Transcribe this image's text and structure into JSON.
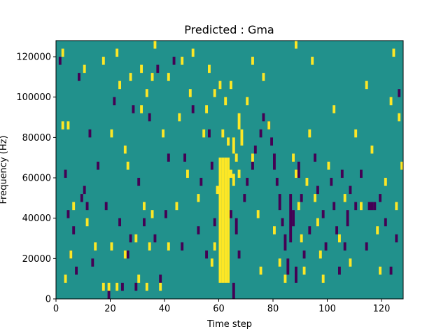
{
  "chart_data": {
    "type": "heatmap",
    "title": "Predicted : Gma",
    "xlabel": "Time step",
    "ylabel": "Frequency (Hz)",
    "xlim": [
      0,
      128
    ],
    "ylim": [
      0,
      128000
    ],
    "x_ticks": [
      0,
      20,
      40,
      60,
      80,
      100,
      120
    ],
    "y_ticks": [
      0,
      20000,
      40000,
      60000,
      80000,
      100000,
      120000
    ],
    "x_tick_labels": [
      "0",
      "20",
      "40",
      "60",
      "80",
      "100",
      "120"
    ],
    "y_tick_labels": [
      "0",
      "20000",
      "40000",
      "60000",
      "80000",
      "100000",
      "120000"
    ],
    "colors": {
      "background": "#21918c",
      "high": "#fde725",
      "low": "#440154"
    },
    "bin_height": 4000,
    "high_cells": [
      [
        60,
        8000,
        70000
      ],
      [
        61,
        8000,
        70000
      ],
      [
        62,
        8000,
        70000
      ],
      [
        63,
        8000,
        70000
      ],
      [
        59,
        52000,
        56000
      ],
      [
        64,
        60000,
        64000
      ],
      [
        65,
        56000,
        62000
      ],
      [
        58,
        24000,
        28000
      ],
      [
        57,
        16000,
        20000
      ],
      [
        65,
        72000,
        80000
      ],
      [
        66,
        68000,
        72000
      ],
      [
        67,
        60000,
        64000
      ],
      [
        67,
        84000,
        92000
      ],
      [
        68,
        76000,
        84000
      ],
      [
        63,
        76000,
        80000
      ],
      [
        61,
        80000,
        84000
      ],
      [
        62,
        96000,
        100000
      ],
      [
        64,
        104000,
        108000
      ],
      [
        2,
        84000,
        88000
      ],
      [
        4,
        84000,
        88000
      ],
      [
        5,
        20000,
        24000
      ],
      [
        6,
        44000,
        48000
      ],
      [
        3,
        8000,
        12000
      ],
      [
        11,
        36000,
        40000
      ],
      [
        14,
        24000,
        28000
      ],
      [
        17,
        4000,
        8000
      ],
      [
        19,
        4000,
        8000
      ],
      [
        20,
        24000,
        28000
      ],
      [
        22,
        4000,
        8000
      ],
      [
        25,
        20000,
        24000
      ],
      [
        29,
        28000,
        32000
      ],
      [
        30,
        8000,
        12000
      ],
      [
        32,
        44000,
        48000
      ],
      [
        33,
        4000,
        8000
      ],
      [
        34,
        24000,
        28000
      ],
      [
        35,
        40000,
        44000
      ],
      [
        38,
        4000,
        8000
      ],
      [
        41,
        24000,
        28000
      ],
      [
        44,
        44000,
        48000
      ],
      [
        48,
        60000,
        64000
      ],
      [
        52,
        48000,
        52000
      ],
      [
        54,
        80000,
        84000
      ],
      [
        20,
        80000,
        84000
      ],
      [
        23,
        104000,
        108000
      ],
      [
        25,
        72000,
        76000
      ],
      [
        26,
        64000,
        68000
      ],
      [
        31,
        92000,
        96000
      ],
      [
        33,
        100000,
        104000
      ],
      [
        35,
        108000,
        112000
      ],
      [
        39,
        80000,
        84000
      ],
      [
        45,
        88000,
        92000
      ],
      [
        49,
        100000,
        104000
      ],
      [
        55,
        92000,
        96000
      ],
      [
        58,
        100000,
        104000
      ],
      [
        2,
        120000,
        124000
      ],
      [
        10,
        112000,
        116000
      ],
      [
        17,
        116000,
        120000
      ],
      [
        22,
        120000,
        124000
      ],
      [
        27,
        108000,
        112000
      ],
      [
        31,
        112000,
        116000
      ],
      [
        36,
        124000,
        128000
      ],
      [
        41,
        108000,
        112000
      ],
      [
        46,
        116000,
        120000
      ],
      [
        50,
        120000,
        124000
      ],
      [
        56,
        112000,
        116000
      ],
      [
        60,
        104000,
        108000
      ],
      [
        70,
        96000,
        100000
      ],
      [
        72,
        68000,
        72000
      ],
      [
        74,
        40000,
        44000
      ],
      [
        75,
        12000,
        16000
      ],
      [
        78,
        84000,
        88000
      ],
      [
        80,
        32000,
        36000
      ],
      [
        82,
        16000,
        20000
      ],
      [
        84,
        8000,
        12000
      ],
      [
        87,
        68000,
        72000
      ],
      [
        88,
        60000,
        64000
      ],
      [
        89,
        44000,
        48000
      ],
      [
        90,
        28000,
        32000
      ],
      [
        91,
        12000,
        16000
      ],
      [
        92,
        56000,
        60000
      ],
      [
        93,
        80000,
        84000
      ],
      [
        95,
        48000,
        52000
      ],
      [
        96,
        36000,
        40000
      ],
      [
        97,
        20000,
        24000
      ],
      [
        98,
        8000,
        12000
      ],
      [
        100,
        64000,
        68000
      ],
      [
        102,
        92000,
        96000
      ],
      [
        104,
        28000,
        32000
      ],
      [
        106,
        48000,
        52000
      ],
      [
        108,
        16000,
        20000
      ],
      [
        110,
        80000,
        84000
      ],
      [
        112,
        44000,
        48000
      ],
      [
        114,
        104000,
        108000
      ],
      [
        116,
        72000,
        76000
      ],
      [
        118,
        32000,
        36000
      ],
      [
        119,
        12000,
        16000
      ],
      [
        121,
        56000,
        60000
      ],
      [
        123,
        96000,
        100000
      ],
      [
        125,
        44000,
        48000
      ],
      [
        126,
        88000,
        92000
      ],
      [
        127,
        64000,
        68000
      ],
      [
        124,
        120000,
        124000
      ],
      [
        88,
        124000,
        128000
      ],
      [
        94,
        116000,
        120000
      ],
      [
        76,
        108000,
        112000
      ],
      [
        72,
        116000,
        120000
      ]
    ],
    "low_cells": [
      [
        65,
        0,
        8000
      ],
      [
        67,
        20000,
        24000
      ],
      [
        66,
        32000,
        40000
      ],
      [
        64,
        40000,
        44000
      ],
      [
        69,
        48000,
        52000
      ],
      [
        70,
        56000,
        60000
      ],
      [
        72,
        64000,
        68000
      ],
      [
        73,
        72000,
        76000
      ],
      [
        75,
        80000,
        84000
      ],
      [
        76,
        88000,
        92000
      ],
      [
        78,
        84000,
        88000
      ],
      [
        79,
        76000,
        80000
      ],
      [
        80,
        64000,
        72000
      ],
      [
        81,
        56000,
        60000
      ],
      [
        82,
        44000,
        52000
      ],
      [
        83,
        36000,
        40000
      ],
      [
        84,
        24000,
        32000
      ],
      [
        85,
        12000,
        20000
      ],
      [
        86,
        28000,
        52000
      ],
      [
        87,
        36000,
        44000
      ],
      [
        88,
        8000,
        16000
      ],
      [
        89,
        60000,
        68000
      ],
      [
        90,
        48000,
        52000
      ],
      [
        91,
        20000,
        24000
      ],
      [
        93,
        32000,
        36000
      ],
      [
        95,
        68000,
        72000
      ],
      [
        96,
        52000,
        56000
      ],
      [
        98,
        40000,
        44000
      ],
      [
        99,
        24000,
        28000
      ],
      [
        101,
        56000,
        60000
      ],
      [
        102,
        44000,
        48000
      ],
      [
        103,
        32000,
        36000
      ],
      [
        104,
        12000,
        16000
      ],
      [
        105,
        60000,
        64000
      ],
      [
        106,
        24000,
        28000
      ],
      [
        107,
        36000,
        44000
      ],
      [
        108,
        52000,
        56000
      ],
      [
        110,
        44000,
        48000
      ],
      [
        112,
        60000,
        64000
      ],
      [
        114,
        24000,
        28000
      ],
      [
        115,
        44000,
        48000
      ],
      [
        116,
        44000,
        48000
      ],
      [
        117,
        44000,
        48000
      ],
      [
        119,
        48000,
        52000
      ],
      [
        121,
        36000,
        40000
      ],
      [
        123,
        12000,
        16000
      ],
      [
        125,
        28000,
        32000
      ],
      [
        126,
        100000,
        104000
      ],
      [
        1,
        116000,
        120000
      ],
      [
        3,
        60000,
        64000
      ],
      [
        5,
        20000,
        24000
      ],
      [
        6,
        32000,
        36000
      ],
      [
        8,
        108000,
        112000
      ],
      [
        9,
        48000,
        52000
      ],
      [
        11,
        44000,
        48000
      ],
      [
        12,
        80000,
        84000
      ],
      [
        13,
        16000,
        20000
      ],
      [
        15,
        64000,
        68000
      ],
      [
        18,
        44000,
        48000
      ],
      [
        19,
        0,
        4000
      ],
      [
        21,
        96000,
        100000
      ],
      [
        23,
        36000,
        40000
      ],
      [
        24,
        4000,
        8000
      ],
      [
        26,
        20000,
        24000
      ],
      [
        28,
        92000,
        96000
      ],
      [
        29,
        4000,
        8000
      ],
      [
        30,
        56000,
        60000
      ],
      [
        32,
        36000,
        40000
      ],
      [
        34,
        88000,
        92000
      ],
      [
        36,
        28000,
        32000
      ],
      [
        37,
        112000,
        116000
      ],
      [
        38,
        8000,
        12000
      ],
      [
        40,
        40000,
        44000
      ],
      [
        41,
        68000,
        72000
      ],
      [
        43,
        116000,
        120000
      ],
      [
        46,
        24000,
        28000
      ],
      [
        47,
        68000,
        72000
      ],
      [
        50,
        92000,
        96000
      ],
      [
        52,
        32000,
        36000
      ],
      [
        53,
        56000,
        60000
      ],
      [
        55,
        20000,
        24000
      ],
      [
        56,
        80000,
        84000
      ],
      [
        57,
        64000,
        68000
      ],
      [
        58,
        36000,
        40000
      ],
      [
        4,
        40000,
        44000
      ],
      [
        7,
        12000,
        16000
      ],
      [
        10,
        52000,
        56000
      ],
      [
        27,
        28000,
        32000
      ]
    ]
  }
}
